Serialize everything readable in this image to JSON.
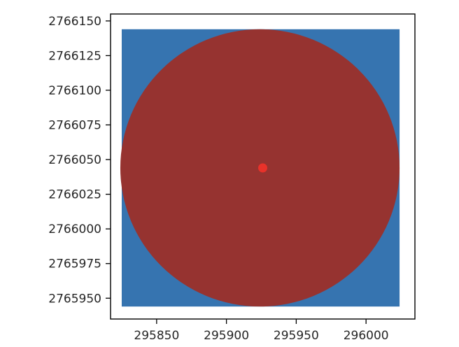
{
  "chart_data": {
    "type": "scatter",
    "title": "",
    "xlabel": "",
    "ylabel": "",
    "xlim": [
      295817,
      296035
    ],
    "ylim": [
      2765935,
      2766155
    ],
    "x_ticks": [
      295850,
      295900,
      295950,
      296000
    ],
    "x_tick_labels": [
      "295850",
      "295900",
      "295950",
      "296000"
    ],
    "y_ticks": [
      2765950,
      2765975,
      2766000,
      2766025,
      2766050,
      2766075,
      2766100,
      2766125,
      2766150
    ],
    "y_tick_labels": [
      "2765950",
      "2765975",
      "2766000",
      "2766025",
      "2766050",
      "2766075",
      "2766100",
      "2766125",
      "2766150"
    ],
    "grid": false,
    "layers": [
      {
        "kind": "square",
        "x_range": [
          295825,
          296024
        ],
        "y_range": [
          2765944,
          2766144
        ],
        "color": "#3674b0"
      },
      {
        "kind": "circle",
        "center": [
          295924,
          2766044
        ],
        "radius": 100,
        "color": "#963330"
      },
      {
        "kind": "point",
        "x": 295926,
        "y": 2766044,
        "color": "#e8322a"
      }
    ]
  }
}
